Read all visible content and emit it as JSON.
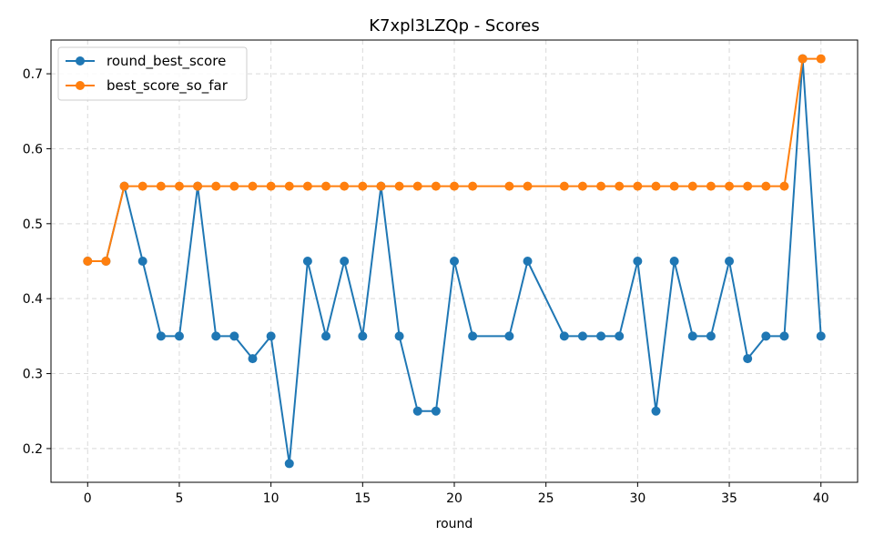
{
  "chart_data": {
    "type": "line",
    "title": "K7xpl3LZQp - Scores",
    "xlabel": "round",
    "ylabel": "",
    "xlim": [
      -2,
      42
    ],
    "ylim": [
      0.155,
      0.745
    ],
    "xticks": [
      0,
      5,
      10,
      15,
      20,
      25,
      30,
      35,
      40
    ],
    "yticks": [
      0.2,
      0.3,
      0.4,
      0.5,
      0.6,
      0.7
    ],
    "grid": true,
    "legend_position": "top-left",
    "series": [
      {
        "name": "round_best_score",
        "color": "#1f77b4",
        "points": [
          [
            0,
            0.45
          ],
          [
            1,
            0.45
          ],
          [
            2,
            0.55
          ],
          [
            3,
            0.45
          ],
          [
            4,
            0.35
          ],
          [
            5,
            0.35
          ],
          [
            6,
            0.55
          ],
          [
            7,
            0.35
          ],
          [
            8,
            0.35
          ],
          [
            9,
            0.32
          ],
          [
            10,
            0.35
          ],
          [
            11,
            0.18
          ],
          [
            12,
            0.45
          ],
          [
            13,
            0.35
          ],
          [
            14,
            0.45
          ],
          [
            15,
            0.35
          ],
          [
            16,
            0.55
          ],
          [
            17,
            0.35
          ],
          [
            18,
            0.25
          ],
          [
            19,
            0.25
          ],
          [
            20,
            0.45
          ],
          [
            21,
            0.35
          ],
          [
            23,
            0.35
          ],
          [
            24,
            0.45
          ],
          [
            26,
            0.35
          ],
          [
            27,
            0.35
          ],
          [
            28,
            0.35
          ],
          [
            29,
            0.35
          ],
          [
            30,
            0.45
          ],
          [
            31,
            0.25
          ],
          [
            32,
            0.45
          ],
          [
            33,
            0.35
          ],
          [
            34,
            0.35
          ],
          [
            35,
            0.45
          ],
          [
            36,
            0.32
          ],
          [
            37,
            0.35
          ],
          [
            38,
            0.35
          ],
          [
            39,
            0.72
          ],
          [
            40,
            0.35
          ]
        ]
      },
      {
        "name": "best_score_so_far",
        "color": "#ff7f0e",
        "points": [
          [
            0,
            0.45
          ],
          [
            1,
            0.45
          ],
          [
            2,
            0.55
          ],
          [
            3,
            0.55
          ],
          [
            4,
            0.55
          ],
          [
            5,
            0.55
          ],
          [
            6,
            0.55
          ],
          [
            7,
            0.55
          ],
          [
            8,
            0.55
          ],
          [
            9,
            0.55
          ],
          [
            10,
            0.55
          ],
          [
            11,
            0.55
          ],
          [
            12,
            0.55
          ],
          [
            13,
            0.55
          ],
          [
            14,
            0.55
          ],
          [
            15,
            0.55
          ],
          [
            16,
            0.55
          ],
          [
            17,
            0.55
          ],
          [
            18,
            0.55
          ],
          [
            19,
            0.55
          ],
          [
            20,
            0.55
          ],
          [
            21,
            0.55
          ],
          [
            23,
            0.55
          ],
          [
            24,
            0.55
          ],
          [
            26,
            0.55
          ],
          [
            27,
            0.55
          ],
          [
            28,
            0.55
          ],
          [
            29,
            0.55
          ],
          [
            30,
            0.55
          ],
          [
            31,
            0.55
          ],
          [
            32,
            0.55
          ],
          [
            33,
            0.55
          ],
          [
            34,
            0.55
          ],
          [
            35,
            0.55
          ],
          [
            36,
            0.55
          ],
          [
            37,
            0.55
          ],
          [
            38,
            0.55
          ],
          [
            39,
            0.72
          ],
          [
            40,
            0.72
          ]
        ]
      }
    ]
  }
}
